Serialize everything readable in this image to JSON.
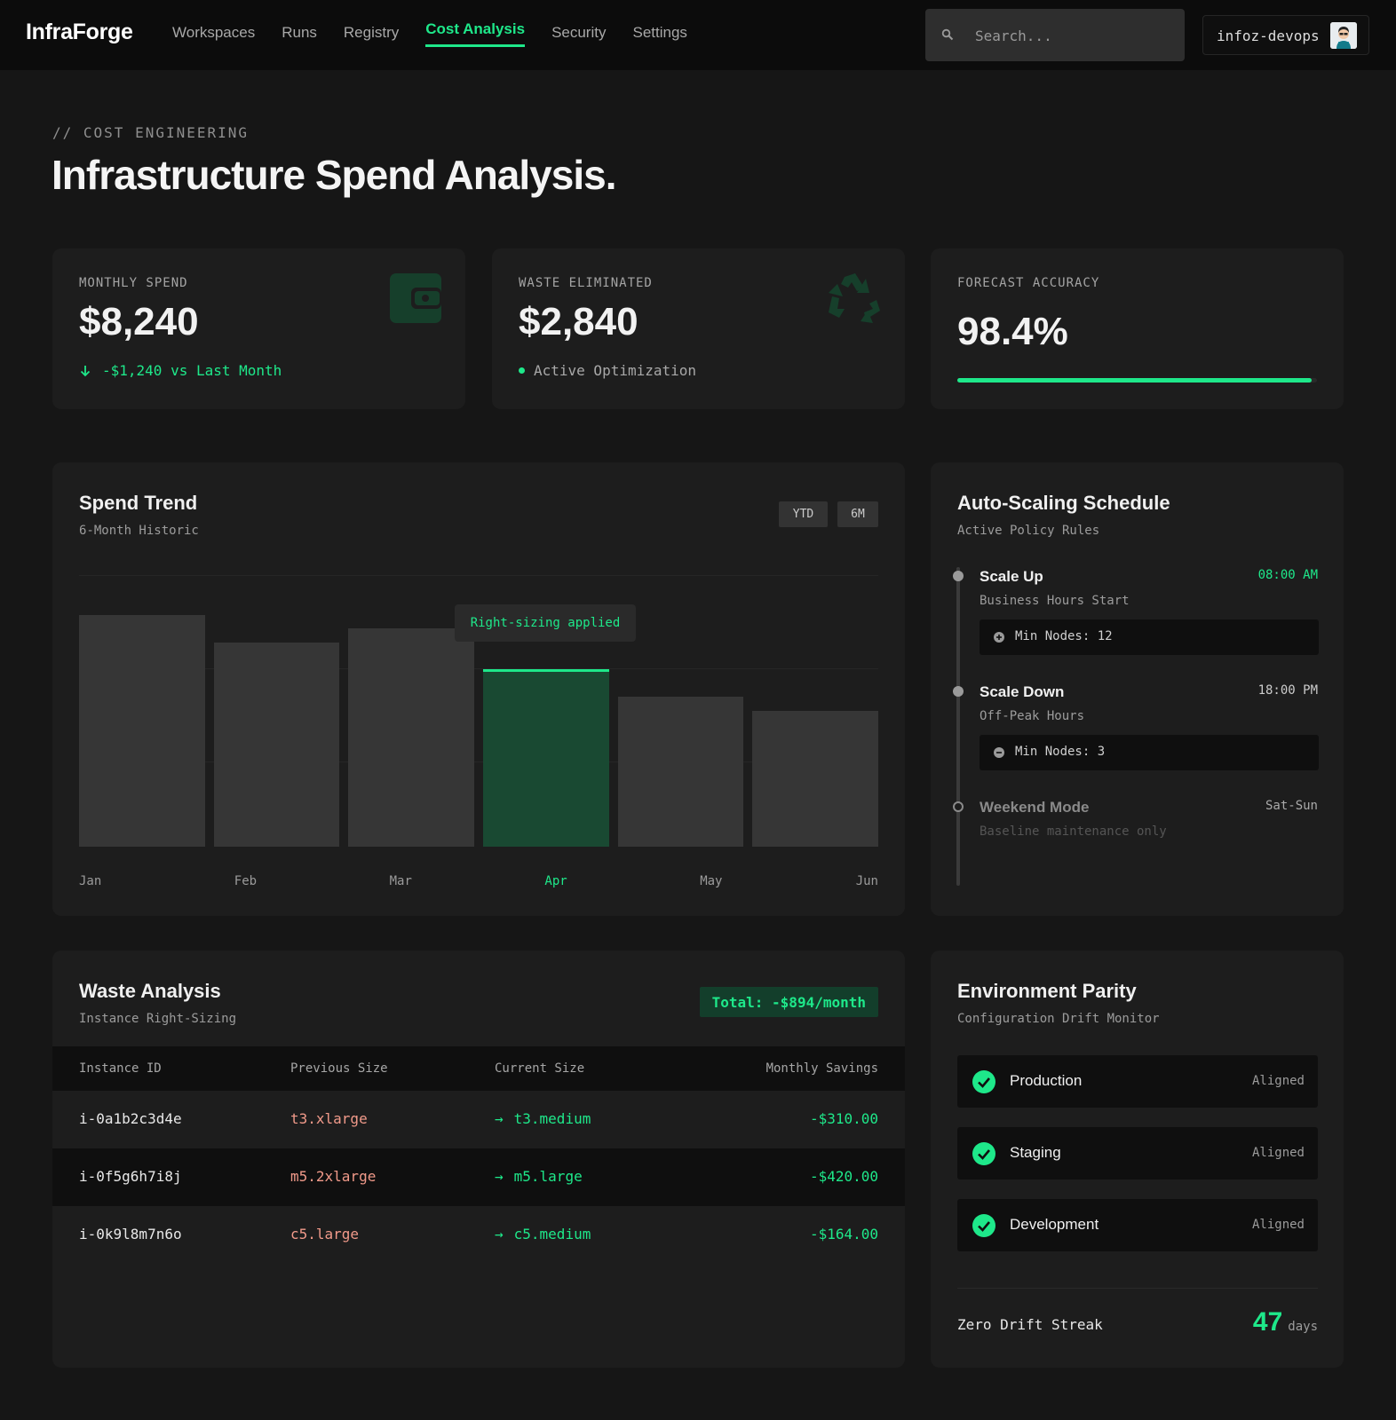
{
  "nav": {
    "brand": "InfraForge",
    "links": [
      "Workspaces",
      "Runs",
      "Registry",
      "Cost Analysis",
      "Security",
      "Settings"
    ],
    "active": "Cost Analysis",
    "search_placeholder": "Search...",
    "username": "infoz-devops"
  },
  "header": {
    "eyebrow": "// COST ENGINEERING",
    "title": "Infrastructure Spend Analysis."
  },
  "stats": {
    "monthly": {
      "label": "MONTHLY SPEND",
      "value": "$8,240",
      "sub": "-$1,240 vs Last Month"
    },
    "waste": {
      "label": "WASTE ELIMINATED",
      "value": "$2,840",
      "sub": "Active Optimization"
    },
    "forecast": {
      "label": "FORECAST ACCURACY",
      "value": "98.4%",
      "progress": 0.984
    }
  },
  "spend_trend": {
    "title": "Spend Trend",
    "subtitle": "6-Month Historic",
    "ranges": [
      "YTD",
      "6M"
    ],
    "tooltip": "Right-sizing applied"
  },
  "chart_data": {
    "type": "bar",
    "categories": [
      "Jan",
      "Feb",
      "Mar",
      "Apr",
      "May",
      "Jun"
    ],
    "values": [
      85,
      75,
      80,
      65,
      55,
      50
    ],
    "highlight": "Apr",
    "ylim": [
      0,
      100
    ],
    "grid": true,
    "annotation": {
      "category": "Apr",
      "text": "Right-sizing applied"
    }
  },
  "schedule": {
    "title": "Auto-Scaling Schedule",
    "subtitle": "Active Policy Rules",
    "events": [
      {
        "title": "Scale Up",
        "sub": "Business Hours Start",
        "time": "08:00 AM",
        "box": "Min Nodes: 12"
      },
      {
        "title": "Scale Down",
        "sub": "Off-Peak Hours",
        "time": "18:00 PM",
        "box": "Min Nodes: 3"
      },
      {
        "title": "Weekend Mode",
        "sub": "Baseline maintenance only",
        "time": "Sat-Sun"
      }
    ]
  },
  "waste_analysis": {
    "title": "Waste Analysis",
    "subtitle": "Instance Right-Sizing",
    "total": "Total: -$894/month",
    "columns": [
      "Instance ID",
      "Previous Size",
      "Current Size",
      "Monthly Savings"
    ],
    "rows": [
      {
        "id": "i-0a1b2c3d4e",
        "prev": "t3.xlarge",
        "curr": "t3.medium",
        "savings": "-$310.00"
      },
      {
        "id": "i-0f5g6h7i8j",
        "prev": "m5.2xlarge",
        "curr": "m5.large",
        "savings": "-$420.00"
      },
      {
        "id": "i-0k9l8m7n6o",
        "prev": "c5.large",
        "curr": "c5.medium",
        "savings": "-$164.00"
      }
    ]
  },
  "parity": {
    "title": "Environment Parity",
    "subtitle": "Configuration Drift Monitor",
    "envs": [
      {
        "name": "Production",
        "status": "Aligned"
      },
      {
        "name": "Staging",
        "status": "Aligned"
      },
      {
        "name": "Development",
        "status": "Aligned"
      }
    ],
    "streak_label": "Zero Drift Streak",
    "streak_value": "47",
    "streak_unit": "days"
  },
  "colors": {
    "accent": "#1ee88a",
    "bg": "#161616",
    "card": "#1d1d1d",
    "danger_text": "#f19a8a"
  },
  "icons": [
    "search-icon",
    "avatar",
    "arrow-down-icon",
    "wallet-icon",
    "recycle-icon",
    "plus-circle-icon",
    "minus-circle-icon",
    "arrow-right-icon",
    "check-circle-icon"
  ]
}
